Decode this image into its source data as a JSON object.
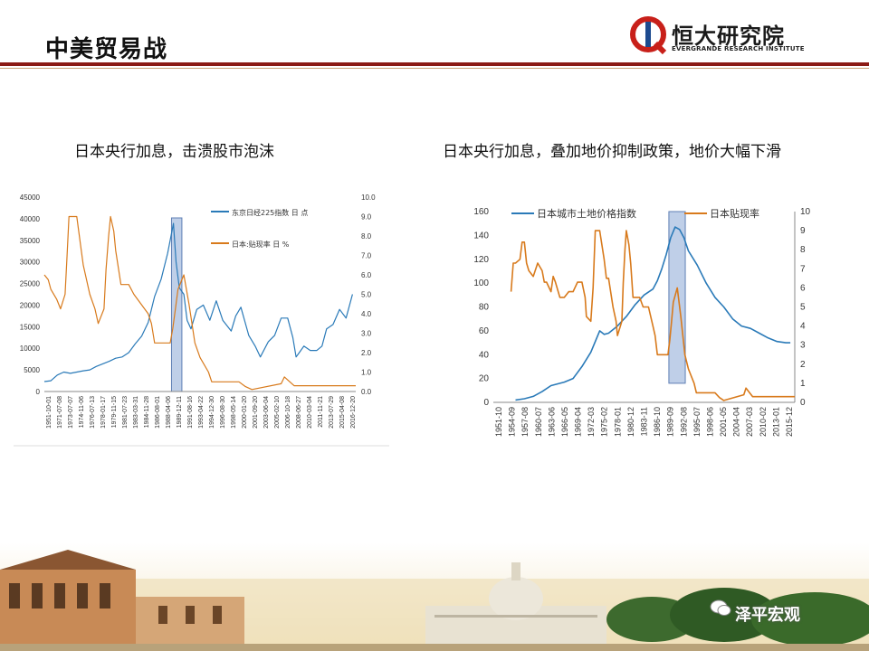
{
  "header": {
    "title": "中美贸易战",
    "logo_cn": "恒大研究院",
    "logo_en": "EVERGRANDE RESEARCH INSTITUTE"
  },
  "watermark": "泽平宏观",
  "colors": {
    "blue": "#2a7ab8",
    "orange": "#d87a1c",
    "highlight": "#a9bfe0",
    "brand_red": "#8b1a14"
  },
  "chart_data": [
    {
      "type": "line",
      "title": "日本央行加息，击溃股市泡沫",
      "x_tick_labels": [
        "1951-10-01",
        "1971-07-08",
        "1973-07-07",
        "1974-11-06",
        "1976-07-13",
        "1978-01-17",
        "1979-11-15",
        "1981-07-23",
        "1983-03-31",
        "1984-11-28",
        "1986-08-01",
        "1988-04-06",
        "1989-12-11",
        "1991-08-16",
        "1993-04-22",
        "1994-12-30",
        "1996-08-30",
        "1998-05-14",
        "2000-01-20",
        "2001-09-20",
        "2003-06-04",
        "2005-02-10",
        "2006-10-18",
        "2008-06-27",
        "2010-03-04",
        "2011-11-21",
        "2013-07-29",
        "2015-04-08",
        "2016-12-20"
      ],
      "y_left": {
        "ticks": [
          "45000",
          "40000",
          "35000",
          "30000",
          "25000",
          "20000",
          "15000",
          "10000",
          "5000",
          "0"
        ],
        "min": 0,
        "max": 45000
      },
      "y_right": {
        "ticks": [
          "10.0",
          "9.0",
          "8.0",
          "7.0",
          "6.0",
          "5.0",
          "4.0",
          "3.0",
          "2.0",
          "1.0",
          "0.0"
        ],
        "min": 0,
        "max": 10
      },
      "highlight": {
        "from": 1989.6,
        "to": 1991.2
      },
      "x_range": [
        1970,
        2018
      ],
      "series": [
        {
          "name": "东京日经225指数 日 点",
          "axis": "left",
          "x": [
            1970,
            1971,
            1972,
            1973,
            1974,
            1975,
            1976,
            1977,
            1978,
            1979,
            1980,
            1981,
            1982,
            1983,
            1984,
            1985,
            1986,
            1987,
            1988,
            1989,
            1989.9,
            1990.3,
            1990.8,
            1991.5,
            1992,
            1992.6,
            1993.5,
            1994.5,
            1995.5,
            1996.5,
            1997.5,
            1998.8,
            1999.5,
            2000.3,
            2001.5,
            2002.5,
            2003.3,
            2004.5,
            2005.5,
            2006.5,
            2007.5,
            2008.3,
            2008.8,
            2009.3,
            2010,
            2011,
            2012,
            2012.8,
            2013.5,
            2014.5,
            2015.5,
            2016.5,
            2017.5
          ],
          "y": [
            2300,
            2500,
            3800,
            4500,
            4200,
            4500,
            4800,
            5000,
            5800,
            6400,
            7000,
            7700,
            8000,
            9000,
            11000,
            12800,
            16000,
            22000,
            26000,
            32000,
            38900,
            30000,
            24000,
            22500,
            16500,
            14500,
            19000,
            20000,
            16500,
            21000,
            16500,
            14000,
            17500,
            19500,
            13000,
            10500,
            8000,
            11500,
            13000,
            17000,
            17000,
            12500,
            8000,
            9000,
            10500,
            9500,
            9500,
            10500,
            14500,
            15500,
            19000,
            17000,
            22500
          ]
        },
        {
          "name": "日本:贴现率 日 %",
          "axis": "right",
          "x": [
            1970,
            1970.6,
            1971,
            1971.9,
            1972.5,
            1973.2,
            1973.5,
            1973.8,
            1975,
            1975.6,
            1976,
            1977,
            1977.8,
            1978.3,
            1979.2,
            1979.5,
            1979.9,
            1980.2,
            1980.7,
            1981,
            1981.8,
            1983,
            1983.8,
            1986,
            1986.5,
            1987,
            1989.4,
            1989.8,
            1990.2,
            1990.6,
            1991.5,
            1992.3,
            1993.2,
            1994,
            1995.3,
            1995.8,
            1996,
            2000,
            2001,
            2002,
            2006.5,
            2007,
            2008.5,
            2009,
            2018
          ],
          "y": [
            6.0,
            5.75,
            5.25,
            4.75,
            4.25,
            5.0,
            7.0,
            9.0,
            9.0,
            7.5,
            6.5,
            5.0,
            4.25,
            3.5,
            4.25,
            6.25,
            8.0,
            9.0,
            8.25,
            7.25,
            5.5,
            5.5,
            5.0,
            4.0,
            3.5,
            2.5,
            2.5,
            3.25,
            4.25,
            5.25,
            6.0,
            4.5,
            2.5,
            1.75,
            1.0,
            0.5,
            0.5,
            0.5,
            0.25,
            0.1,
            0.4,
            0.75,
            0.3,
            0.3,
            0.3
          ]
        }
      ]
    },
    {
      "type": "line",
      "title": "日本央行加息，叠加地价抑制政策，地价大幅下滑",
      "x_tick_labels": [
        "1951-10",
        "1954-09",
        "1957-08",
        "1960-07",
        "1963-06",
        "1966-05",
        "1969-04",
        "1972-03",
        "1975-02",
        "1978-01",
        "1980-12",
        "1983-11",
        "1986-10",
        "1989-09",
        "1992-08",
        "1995-07",
        "1998-06",
        "2001-05",
        "2004-04",
        "2007-03",
        "2010-02",
        "2013-01",
        "2015-12"
      ],
      "y_left": {
        "ticks": [
          "160",
          "140",
          "120",
          "100",
          "80",
          "60",
          "40",
          "20",
          "0"
        ],
        "min": 0,
        "max": 160
      },
      "y_right": {
        "ticks": [
          "10",
          "9",
          "8",
          "7",
          "6",
          "5",
          "4",
          "3",
          "2",
          "1",
          "0"
        ],
        "min": 0,
        "max": 10
      },
      "highlight": {
        "from": 1989.6,
        "to": 1993.3,
        "y_top": 10.0,
        "y_bottom": 1.0
      },
      "x_range": [
        1950,
        2018
      ],
      "series": [
        {
          "name": "日本城市土地价格指数",
          "axis": "left",
          "x": [
            1955,
            1957,
            1959,
            1961,
            1963,
            1966,
            1968,
            1970,
            1972,
            1974,
            1975,
            1976,
            1978,
            1980,
            1982,
            1984,
            1986,
            1987,
            1988,
            1989,
            1990,
            1991,
            1992,
            1993,
            1994,
            1996,
            1998,
            2000,
            2002,
            2004,
            2006,
            2008,
            2010,
            2012,
            2014,
            2016,
            2017
          ],
          "y": [
            2,
            3,
            5,
            9,
            14,
            17,
            20,
            30,
            42,
            60,
            57,
            58,
            64,
            72,
            82,
            90,
            95,
            102,
            112,
            124,
            138,
            147,
            145,
            138,
            127,
            115,
            100,
            88,
            80,
            70,
            64,
            62,
            58,
            54,
            51,
            50,
            50
          ]
        },
        {
          "name": "日本贴现率",
          "axis": "right",
          "x": [
            1954,
            1954.5,
            1955,
            1956,
            1956.5,
            1957,
            1957.5,
            1958,
            1959,
            1960,
            1961,
            1961.5,
            1962,
            1963,
            1963.5,
            1964,
            1965,
            1965.5,
            1966,
            1967,
            1968,
            1969,
            1970,
            1970.7,
            1971,
            1972,
            1972.5,
            1973,
            1973.5,
            1974,
            1975,
            1975.5,
            1976,
            1977,
            1977.7,
            1978,
            1979,
            1979.3,
            1979.7,
            1980,
            1980.6,
            1981,
            1981.5,
            1982,
            1983,
            1983.8,
            1985,
            1986,
            1986.5,
            1987,
            1989.4,
            1989.8,
            1990.2,
            1990.6,
            1991.5,
            1992.3,
            1993.2,
            1994,
            1995.3,
            1995.8,
            1996,
            2000,
            2001,
            2002,
            2006.5,
            2007,
            2008.5,
            2009,
            2018
          ],
          "y": [
            5.8,
            7.3,
            7.3,
            7.5,
            8.4,
            8.4,
            7.3,
            6.9,
            6.6,
            7.3,
            6.9,
            6.3,
            6.3,
            5.8,
            6.6,
            6.3,
            5.5,
            5.5,
            5.5,
            5.8,
            5.8,
            6.3,
            6.3,
            5.5,
            4.5,
            4.25,
            6.0,
            9.0,
            9.0,
            9.0,
            7.5,
            6.5,
            6.5,
            5.0,
            4.25,
            3.5,
            4.25,
            6.25,
            8.0,
            9.0,
            8.25,
            7.25,
            5.5,
            5.5,
            5.5,
            5.0,
            5.0,
            4.0,
            3.5,
            2.5,
            2.5,
            3.25,
            4.25,
            5.25,
            6.0,
            4.5,
            2.5,
            1.75,
            1.0,
            0.5,
            0.5,
            0.5,
            0.25,
            0.1,
            0.4,
            0.75,
            0.3,
            0.3,
            0.3
          ]
        }
      ]
    }
  ]
}
